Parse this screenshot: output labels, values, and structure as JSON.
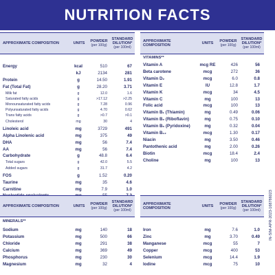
{
  "title": "NUTRITION FACTS",
  "side_code": "IN-SIM-APR-2023-168786023",
  "headers": {
    "composition": "APPROXIMATE COMPOSITION",
    "units": "UNITS",
    "powder": "POWDER",
    "powder_sub": "(per 100g)",
    "standard": "STANDARD DILUTION*",
    "standard_sub": "(per 100ml)"
  },
  "sections": {
    "vitamins": "VITAMINS**",
    "minerals": "MINERALS**"
  },
  "left_rows": [
    {
      "name": "Energy",
      "unit": "kcal",
      "powder": "510",
      "std": "67",
      "sub": false
    },
    {
      "name": "",
      "unit": "kJ",
      "powder": "2134",
      "std": "281",
      "sub": false
    },
    {
      "name": "Protein",
      "unit": "g",
      "powder": "14.50",
      "std": "1.91",
      "sub": false
    },
    {
      "name": "Fat (Total Fat)",
      "unit": "g",
      "powder": "28.20",
      "std": "3.71",
      "sub": false
    },
    {
      "name": "Milk fat",
      "unit": "g",
      "powder": "12.0",
      "std": "1.6",
      "sub": true
    },
    {
      "name": "Saturated fatty acids",
      "unit": "g",
      "powder": ">17.12",
      "std": ">2.25",
      "sub": true
    },
    {
      "name": "Monounsaturated fatty acids",
      "unit": "g",
      "powder": "7.28",
      "std": "0.96",
      "sub": true
    },
    {
      "name": "Polyunsaturated fatty acids",
      "unit": "g",
      "powder": "4.70",
      "std": "0.62",
      "sub": true
    },
    {
      "name": "Trans fatty acids",
      "unit": "g",
      "powder": ">0.7",
      "std": ">0.1",
      "sub": true
    },
    {
      "name": "Cholesterol",
      "unit": "mg",
      "powder": "30",
      "std": "4",
      "sub": true
    },
    {
      "name": "Linoleic acid",
      "unit": "mg",
      "powder": "3729",
      "std": "491",
      "sub": false
    },
    {
      "name": "Alpha Linolenic acid",
      "unit": "mg",
      "powder": "375",
      "std": "49",
      "sub": false
    },
    {
      "name": "DHA",
      "unit": "mg",
      "powder": "56",
      "std": "7.4",
      "sub": false
    },
    {
      "name": "AA",
      "unit": "mg",
      "powder": "56",
      "std": "7.4",
      "sub": false
    },
    {
      "name": "Carbohydrate",
      "unit": "g",
      "powder": "48.8",
      "std": "6.4",
      "sub": false
    },
    {
      "name": "Total sugars",
      "unit": "g",
      "powder": "42.0",
      "std": "5.5",
      "sub": true
    },
    {
      "name": "Added sugars",
      "unit": "g",
      "powder": "31.7",
      "std": "4.2",
      "sub": true
    },
    {
      "name": "FOS",
      "unit": "g",
      "powder": "1.52",
      "std": "0.20",
      "sub": false
    },
    {
      "name": "Taurine",
      "unit": "mg",
      "powder": "35",
      "std": "4.6",
      "sub": false
    },
    {
      "name": "Carnitine",
      "unit": "mg",
      "powder": "7.9",
      "std": "1.0",
      "sub": false
    },
    {
      "name": "Nucleotide equivalents",
      "unit": "mg",
      "powder": "55",
      "std": "7.2",
      "sub": false
    },
    {
      "name": "Lutein",
      "unit": "mcg",
      "powder": "87",
      "std": "11",
      "sub": false
    }
  ],
  "right_rows": [
    {
      "name": "Vitamin A",
      "unit": "mcg RE",
      "powder": "426",
      "std": "56"
    },
    {
      "name": "Beta carotene",
      "unit": "mcg",
      "powder": "272",
      "std": "36"
    },
    {
      "name": "Vitamin D₂",
      "unit": "mcg",
      "powder": "6.0",
      "std": "0.8"
    },
    {
      "name": "Vitamin E",
      "unit": "IU",
      "powder": "12.8",
      "std": "1.7"
    },
    {
      "name": "Vitamin K",
      "unit": "mcg",
      "powder": "34",
      "std": "4.5"
    },
    {
      "name": "Vitamin C",
      "unit": "mg",
      "powder": "100",
      "std": "13"
    },
    {
      "name": "Folic acid",
      "unit": "mcg",
      "powder": "100",
      "std": "13"
    },
    {
      "name": "Vitamin B₁ (Thiamin)",
      "unit": "mg",
      "powder": "0.49",
      "std": "0.06"
    },
    {
      "name": "Vitamin B₂ (Riboflavin)",
      "unit": "mg",
      "powder": "0.75",
      "std": "0.10"
    },
    {
      "name": "Vitamin B₆ (Pyridoxine)",
      "unit": "mg",
      "powder": "0.32",
      "std": "0.04"
    },
    {
      "name": "Vitamin B₁₂",
      "unit": "mcg",
      "powder": "1.30",
      "std": "0.17"
    },
    {
      "name": "Niacin",
      "unit": "mg",
      "powder": "3.50",
      "std": "0.46"
    },
    {
      "name": "Pantothenic acid",
      "unit": "mg",
      "powder": "2.00",
      "std": "0.26"
    },
    {
      "name": "Biotin",
      "unit": "mcg",
      "powder": "18.4",
      "std": "2.4"
    },
    {
      "name": "Choline",
      "unit": "mg",
      "powder": "100",
      "std": "13"
    }
  ],
  "minerals_left": [
    {
      "name": "Sodium",
      "unit": "mg",
      "powder": "140",
      "std": "18"
    },
    {
      "name": "Potassium",
      "unit": "mg",
      "powder": "500",
      "std": "66"
    },
    {
      "name": "Chloride",
      "unit": "mg",
      "powder": "291",
      "std": "38"
    },
    {
      "name": "Calcium",
      "unit": "mg",
      "powder": "369",
      "std": "49"
    },
    {
      "name": "Phosphorus",
      "unit": "mg",
      "powder": "230",
      "std": "30"
    },
    {
      "name": "Magnesium",
      "unit": "mg",
      "powder": "32",
      "std": "4"
    }
  ],
  "minerals_right": [
    {
      "name": "Iron",
      "unit": "mg",
      "powder": "7.6",
      "std": "1.0"
    },
    {
      "name": "Zinc",
      "unit": "mg",
      "powder": "3.70",
      "std": "0.49"
    },
    {
      "name": "Manganese",
      "unit": "mcg",
      "powder": "55",
      "std": "7"
    },
    {
      "name": "Copper",
      "unit": "mcg",
      "powder": "400",
      "std": "53"
    },
    {
      "name": "Selenium",
      "unit": "mcg",
      "powder": "14.4",
      "std": "1.9"
    },
    {
      "name": "Iodine",
      "unit": "mcg",
      "powder": "75",
      "std": "10"
    }
  ]
}
